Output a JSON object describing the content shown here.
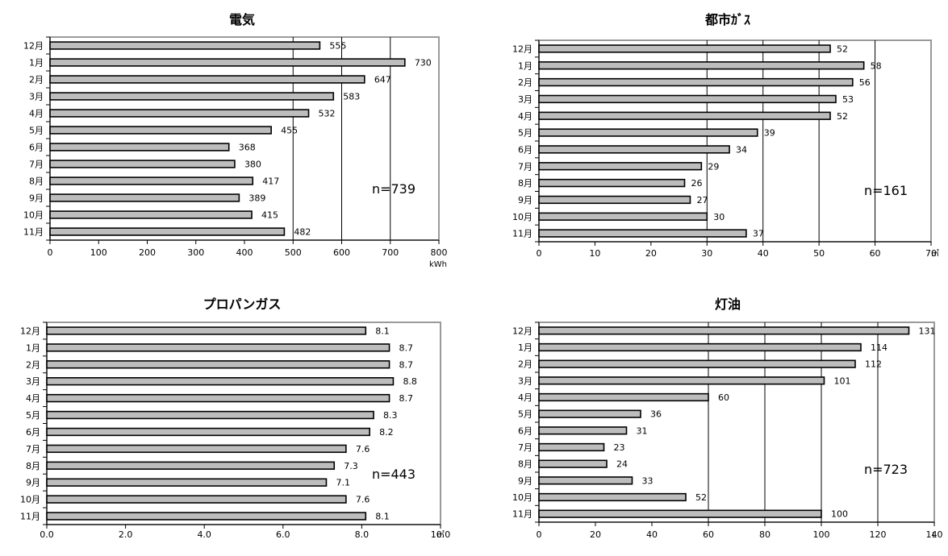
{
  "chart_data": [
    {
      "type": "bar",
      "orientation": "horizontal",
      "title": "電気",
      "unit": "kWh",
      "categories": [
        "12月",
        "1月",
        "2月",
        "3月",
        "4月",
        "5月",
        "6月",
        "7月",
        "8月",
        "9月",
        "10月",
        "11月"
      ],
      "values": [
        555,
        730,
        647,
        583,
        532,
        455,
        368,
        380,
        417,
        389,
        415,
        482
      ],
      "value_labels": [
        "555",
        "730",
        "647",
        "583",
        "532",
        "455",
        "368",
        "380",
        "417",
        "389",
        "415",
        "482"
      ],
      "xlim": [
        0,
        800
      ],
      "ticks": [
        0,
        100,
        200,
        300,
        400,
        500,
        600,
        700,
        800
      ],
      "tick_labels": [
        "0",
        "100",
        "200",
        "300",
        "400",
        "500",
        "600",
        "700",
        "800"
      ],
      "gridlines": [
        500,
        600,
        700
      ],
      "n_label": "n=739"
    },
    {
      "type": "bar",
      "orientation": "horizontal",
      "title": "都市ｶﾞｽ",
      "unit": "㎥",
      "categories": [
        "12月",
        "1月",
        "2月",
        "3月",
        "4月",
        "5月",
        "6月",
        "7月",
        "8月",
        "9月",
        "10月",
        "11月"
      ],
      "values": [
        52,
        58,
        56,
        53,
        52,
        39,
        34,
        29,
        26,
        27,
        30,
        37
      ],
      "value_labels": [
        "52",
        "58",
        "56",
        "53",
        "52",
        "39",
        "34",
        "29",
        "26",
        "27",
        "30",
        "37"
      ],
      "xlim": [
        0,
        70
      ],
      "ticks": [
        0,
        10,
        20,
        30,
        40,
        50,
        60,
        70
      ],
      "tick_labels": [
        "0",
        "10",
        "20",
        "30",
        "40",
        "50",
        "60",
        "70"
      ],
      "gridlines": [
        30,
        40,
        50,
        60
      ],
      "n_label": "n=161"
    },
    {
      "type": "bar",
      "orientation": "horizontal",
      "title": "プロパンガス",
      "unit": "㎥",
      "categories": [
        "12月",
        "1月",
        "2月",
        "3月",
        "4月",
        "5月",
        "6月",
        "7月",
        "8月",
        "9月",
        "10月",
        "11月"
      ],
      "values": [
        8.1,
        8.7,
        8.7,
        8.8,
        8.7,
        8.3,
        8.2,
        7.6,
        7.3,
        7.1,
        7.6,
        8.1
      ],
      "value_labels": [
        "8.1",
        "8.7",
        "8.7",
        "8.8",
        "8.7",
        "8.3",
        "8.2",
        "7.6",
        "7.3",
        "7.1",
        "7.6",
        "8.1"
      ],
      "xlim": [
        0,
        10
      ],
      "ticks": [
        0,
        2,
        4,
        6,
        8,
        10
      ],
      "tick_labels": [
        "0.0",
        "2.0",
        "4.0",
        "6.0",
        "8.0",
        "10.0"
      ],
      "gridlines": [],
      "n_label": "n=443"
    },
    {
      "type": "bar",
      "orientation": "horizontal",
      "title": "灯油",
      "unit": "L",
      "categories": [
        "12月",
        "1月",
        "2月",
        "3月",
        "4月",
        "5月",
        "6月",
        "7月",
        "8月",
        "9月",
        "10月",
        "11月"
      ],
      "values": [
        131,
        114,
        112,
        101,
        60,
        36,
        31,
        23,
        24,
        33,
        52,
        100
      ],
      "value_labels": [
        "131",
        "114",
        "112",
        "101",
        "60",
        "36",
        "31",
        "23",
        "24",
        "33",
        "52",
        "100"
      ],
      "xlim": [
        0,
        140
      ],
      "ticks": [
        0,
        20,
        40,
        60,
        80,
        100,
        120,
        140
      ],
      "tick_labels": [
        "0",
        "20",
        "40",
        "60",
        "80",
        "100",
        "120",
        "140"
      ],
      "gridlines": [
        60,
        80,
        100,
        120
      ],
      "n_label": "n=723"
    }
  ]
}
